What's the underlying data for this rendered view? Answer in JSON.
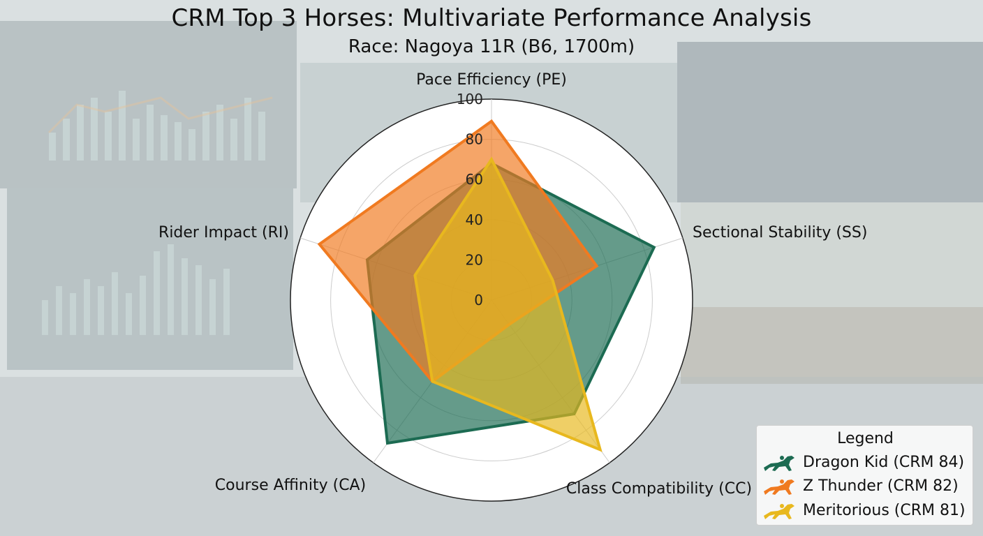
{
  "chart_data": {
    "type": "radar",
    "title": "CRM Top 3 Horses: Multivariate Performance Analysis",
    "subtitle": "Race: Nagoya 11R (B6, 1700m)",
    "axes": [
      "Pace Efficiency (PE)",
      "Sectional Stability (SS)",
      "Class Compatibility (CC)",
      "Course Affinity (CA)",
      "Rider Impact (RI)"
    ],
    "r_ticks": [
      "0",
      "20",
      "40",
      "60",
      "80",
      "100"
    ],
    "r_range": [
      0,
      100
    ],
    "grid": true,
    "series": [
      {
        "name": "Dragon Kid (CRM 84)",
        "color": "#1c6b52",
        "values": [
          68,
          85,
          70,
          88,
          65
        ]
      },
      {
        "name": "Z Thunder (CRM 82)",
        "color": "#f07a20",
        "values": [
          89,
          55,
          15,
          50,
          90
        ]
      },
      {
        "name": "Meritorious (CRM 81)",
        "color": "#e8b81e",
        "values": [
          70,
          32,
          92,
          50,
          40
        ]
      }
    ],
    "legend": {
      "title": "Legend",
      "placement": "bottom-right",
      "icon": "racehorse-icon"
    }
  }
}
